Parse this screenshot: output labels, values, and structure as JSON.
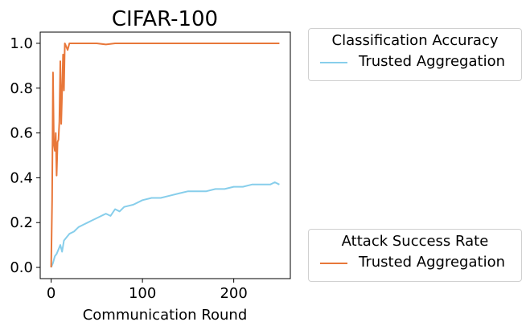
{
  "chart_data": {
    "type": "line",
    "title": "CIFAR-100",
    "xlabel": "Communication Round",
    "ylabel": "",
    "xlim": [
      -12,
      262
    ],
    "ylim": [
      -0.05,
      1.05
    ],
    "xticks": [
      0,
      100,
      200
    ],
    "yticks": [
      0.0,
      0.2,
      0.4,
      0.6,
      0.8,
      1.0
    ],
    "ytick_labels": [
      "0.0",
      "0.2",
      "0.4",
      "0.6",
      "0.8",
      "1.0"
    ],
    "grid": false,
    "legends": [
      {
        "title": "Classification Accuracy",
        "placement": "upper right outside",
        "entries": [
          "Trusted Aggregation"
        ]
      },
      {
        "title": "Attack Success Rate",
        "placement": "lower right outside",
        "entries": [
          "Trusted Aggregation"
        ]
      }
    ],
    "series": [
      {
        "legend_title": "Classification Accuracy",
        "name": "Trusted Aggregation",
        "color": "#87CEEB",
        "x": [
          0,
          2,
          4,
          6,
          8,
          10,
          12,
          14,
          16,
          20,
          25,
          30,
          35,
          40,
          45,
          50,
          55,
          60,
          65,
          70,
          75,
          80,
          90,
          100,
          110,
          120,
          130,
          140,
          150,
          160,
          170,
          180,
          190,
          200,
          210,
          220,
          230,
          240,
          245,
          250
        ],
        "y": [
          0.0,
          0.02,
          0.05,
          0.06,
          0.08,
          0.1,
          0.07,
          0.12,
          0.13,
          0.15,
          0.16,
          0.18,
          0.19,
          0.2,
          0.21,
          0.22,
          0.23,
          0.24,
          0.23,
          0.26,
          0.25,
          0.27,
          0.28,
          0.3,
          0.31,
          0.31,
          0.32,
          0.33,
          0.34,
          0.34,
          0.34,
          0.35,
          0.35,
          0.36,
          0.36,
          0.37,
          0.37,
          0.37,
          0.38,
          0.37
        ]
      },
      {
        "legend_title": "Attack Success Rate",
        "name": "Trusted Aggregation",
        "color": "#E8773A",
        "x": [
          0,
          1,
          2,
          3,
          4,
          5,
          6,
          7,
          8,
          9,
          10,
          11,
          12,
          13,
          14,
          15,
          16,
          18,
          20,
          25,
          30,
          35,
          40,
          50,
          60,
          70,
          80,
          100,
          120,
          150,
          180,
          200,
          220,
          250
        ],
        "y": [
          0.0,
          0.3,
          0.87,
          0.55,
          0.52,
          0.6,
          0.41,
          0.56,
          0.57,
          0.65,
          0.92,
          0.64,
          0.78,
          0.95,
          0.79,
          1.0,
          0.99,
          0.97,
          1.0,
          1.0,
          1.0,
          1.0,
          1.0,
          1.0,
          0.995,
          1.0,
          1.0,
          1.0,
          1.0,
          1.0,
          1.0,
          1.0,
          1.0,
          1.0
        ]
      }
    ]
  }
}
